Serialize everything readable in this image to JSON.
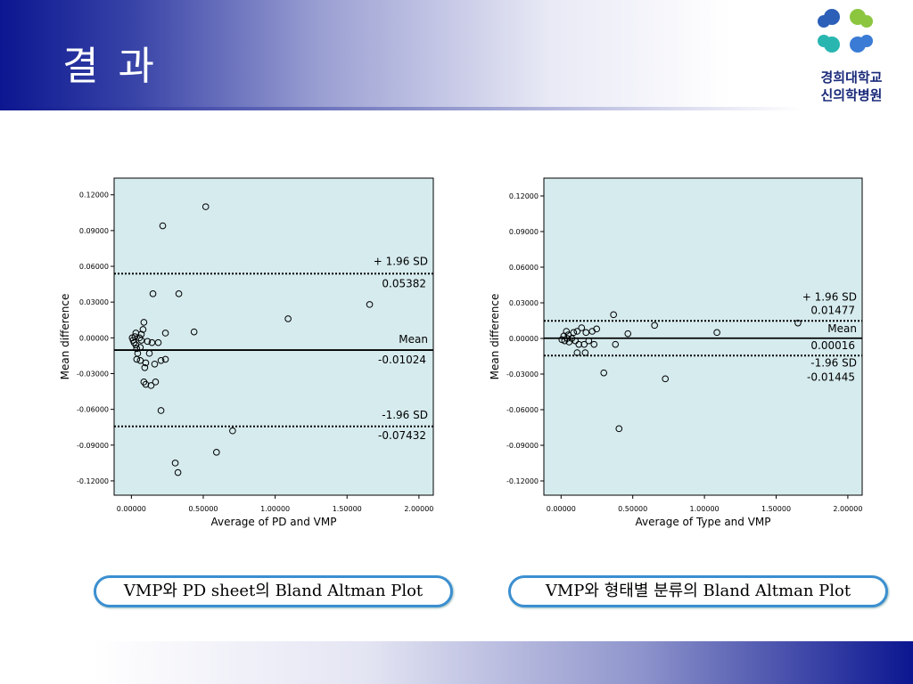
{
  "header": {
    "title": "결 과"
  },
  "logo": {
    "line1": "경희대학교",
    "line2": "신의학병원"
  },
  "chart_data": [
    {
      "type": "scatter",
      "caption": "VMP와 PD sheet의 Bland Altman Plot",
      "xlabel": "Average of PD and VMP",
      "ylabel": "Mean difference",
      "background": "#d6ebee",
      "color": "#000000",
      "xlim": [
        -0.12,
        2.1
      ],
      "ylim": [
        -0.132,
        0.134
      ],
      "xticks": [
        {
          "value": 0,
          "label": "0.00000"
        },
        {
          "value": 0.5,
          "label": "0.50000"
        },
        {
          "value": 1,
          "label": "1.00000"
        },
        {
          "value": 1.5,
          "label": "1.50000"
        },
        {
          "value": 2,
          "label": "2.00000"
        }
      ],
      "yticks": [
        {
          "value": 0.12,
          "label": "0.12000"
        },
        {
          "value": 0.09,
          "label": "0.09000"
        },
        {
          "value": 0.06,
          "label": "0.06000"
        },
        {
          "value": 0.03,
          "label": "0.03000"
        },
        {
          "value": 0,
          "label": "0.00000"
        },
        {
          "value": -0.03,
          "label": "-0.03000"
        },
        {
          "value": -0.06,
          "label": "-0.06000"
        },
        {
          "value": -0.09,
          "label": "-0.09000"
        },
        {
          "value": -0.12,
          "label": "-0.12000"
        }
      ],
      "reference_lines": [
        {
          "label": "+ 1.96 SD",
          "value": 0.05382,
          "style": "dotted"
        },
        {
          "label": "Mean",
          "value": -0.01024,
          "style": "solid"
        },
        {
          "label": "-1.96 SD",
          "value": -0.07432,
          "style": "dotted"
        }
      ],
      "x": [
        0.517,
        0.218,
        0.15,
        0.33,
        1.09,
        1.657,
        0.436,
        0.237,
        0.087,
        0.081,
        0.031,
        0.187,
        0.143,
        0.112,
        0.069,
        0.125,
        0.044,
        0.037,
        0.062,
        0.1,
        0.206,
        0.237,
        0.162,
        0.093,
        0.087,
        0.1,
        0.137,
        0.168,
        0.206,
        0.704,
        0.592,
        0.305,
        0.324,
        0.006,
        0.012,
        0.019,
        0.031,
        0.025,
        0.056,
        0.069,
        0.037,
        0.062
      ],
      "values": [
        0.11,
        0.094,
        0.037,
        0.037,
        0.016,
        0.028,
        0.005,
        0.004,
        0.013,
        0.007,
        0.004,
        -0.004,
        -0.004,
        -0.003,
        -0.002,
        -0.013,
        -0.013,
        -0.018,
        -0.019,
        -0.021,
        -0.019,
        -0.018,
        -0.022,
        -0.025,
        -0.037,
        -0.039,
        -0.04,
        -0.037,
        -0.061,
        -0.078,
        -0.096,
        -0.105,
        -0.113,
        0,
        -0.002,
        -0.004,
        -0.006,
        0.001,
        0,
        0.003,
        -0.009,
        -0.008
      ]
    },
    {
      "type": "scatter",
      "caption": "VMP와 형태별 분류의 Bland Altman Plot",
      "xlabel": "Average of Type and VMP",
      "ylabel": "Mean difference",
      "background": "#d6ebee",
      "color": "#000000",
      "xlim": [
        -0.12,
        2.1
      ],
      "ylim": [
        -0.132,
        0.135
      ],
      "xticks": [
        {
          "value": 0,
          "label": "0.00000"
        },
        {
          "value": 0.5,
          "label": "0.50000"
        },
        {
          "value": 1,
          "label": "1.00000"
        },
        {
          "value": 1.5,
          "label": "1.50000"
        },
        {
          "value": 2,
          "label": "2.00000"
        }
      ],
      "yticks": [
        {
          "value": 0.12,
          "label": "0.12000"
        },
        {
          "value": 0.09,
          "label": "0.09000"
        },
        {
          "value": 0.06,
          "label": "0.06000"
        },
        {
          "value": 0.03,
          "label": "0.03000"
        },
        {
          "value": 0,
          "label": "0.00000"
        },
        {
          "value": -0.03,
          "label": "-0.03000"
        },
        {
          "value": -0.06,
          "label": "-0.06000"
        },
        {
          "value": -0.09,
          "label": "-0.09000"
        },
        {
          "value": -0.12,
          "label": "-0.12000"
        }
      ],
      "reference_lines": [
        {
          "label": "+ 1.96 SD",
          "value": 0.01477,
          "style": "dotted"
        },
        {
          "label": "Mean",
          "value": 0.00016,
          "style": "solid"
        },
        {
          "label": "-1.96 SD",
          "value": -0.01445,
          "style": "dotted"
        }
      ],
      "x": [
        0.366,
        0.652,
        1.087,
        1.652,
        0.466,
        0.379,
        0.248,
        0.217,
        0.174,
        0.143,
        0.112,
        0.087,
        0.05,
        0.037,
        0.019,
        0.006,
        0.025,
        0.056,
        0.099,
        0.124,
        0.161,
        0.193,
        0.23,
        0.112,
        0.168,
        0.298,
        0.727,
        0.404,
        0.075,
        0.043
      ],
      "values": [
        0.02,
        0.011,
        0.005,
        0.013,
        0.004,
        -0.005,
        0.008,
        0.006,
        0.005,
        0.009,
        0.006,
        0.005,
        0.003,
        0.006,
        0.002,
        -0.001,
        -0.002,
        -0.003,
        -0.002,
        -0.005,
        -0.005,
        -0.002,
        -0.005,
        -0.012,
        -0.012,
        -0.029,
        -0.034,
        -0.076,
        0,
        0
      ]
    }
  ]
}
